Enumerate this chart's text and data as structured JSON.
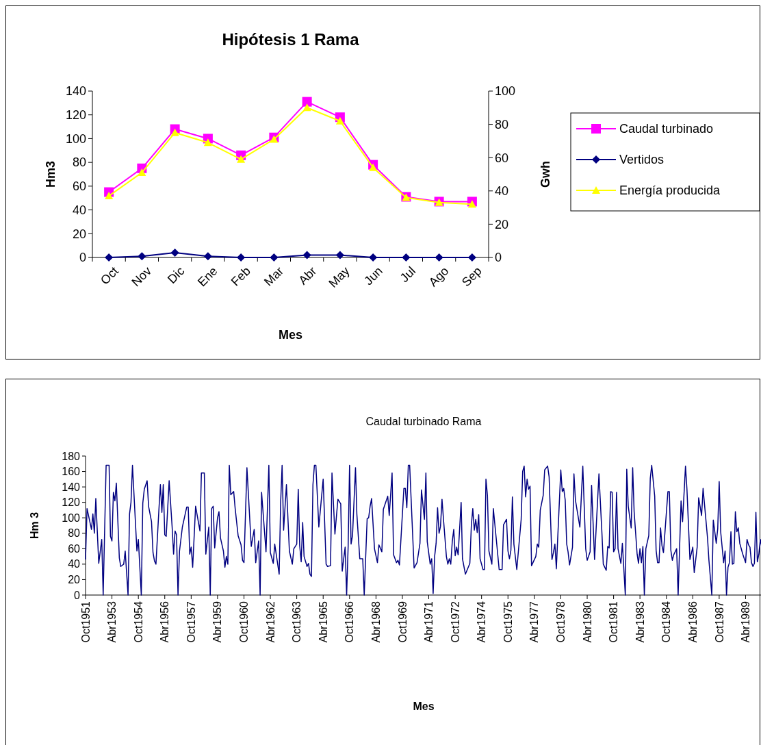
{
  "chart_data": [
    {
      "type": "line",
      "title": "Hipótesis 1 Rama",
      "xlabel": "Mes",
      "ylabel": "Hm3",
      "y2label": "Gwh",
      "categories": [
        "Oct",
        "Nov",
        "Dic",
        "Ene",
        "Feb",
        "Mar",
        "Abr",
        "May",
        "Jun",
        "Jul",
        "Ago",
        "Sep"
      ],
      "series": [
        {
          "name": "Caudal turbinado",
          "color": "#ff00ff",
          "marker": "square",
          "values": [
            55,
            75,
            108,
            100,
            86,
            101,
            131,
            118,
            78,
            51,
            47,
            47
          ]
        },
        {
          "name": "Vertidos",
          "color": "#000080",
          "marker": "diamond",
          "values": [
            0,
            1,
            4,
            1,
            0,
            0,
            2,
            2,
            0,
            0,
            0,
            0
          ]
        },
        {
          "name": "Energía producida",
          "color": "#ffff00",
          "marker": "triangle",
          "axis": "y2",
          "values": [
            37,
            51,
            75,
            69,
            59,
            71,
            90,
            82,
            54,
            36,
            33,
            32
          ]
        }
      ],
      "ylim": [
        0,
        140
      ],
      "yticks": [
        0,
        20,
        40,
        60,
        80,
        100,
        120,
        140
      ],
      "y2lim": [
        0,
        100
      ],
      "y2ticks": [
        0,
        20,
        40,
        60,
        80,
        100
      ],
      "grid": false,
      "legend": "right",
      "line_style": "solid"
    },
    {
      "type": "line",
      "title": "Caudal turbinado Rama",
      "xlabel": "Mes",
      "ylabel": "Hm 3",
      "marker": "none",
      "grid": false,
      "legend": false,
      "line_style": "solid",
      "xlim": [
        "1951-10",
        "1990-03"
      ],
      "ylim": [
        0,
        180
      ],
      "yticks": [
        0,
        20,
        40,
        60,
        80,
        100,
        120,
        140,
        160,
        180
      ],
      "xticks": [
        {
          "value": "1951-10",
          "label": "Oct1951"
        },
        {
          "value": "1953-04",
          "label": "Abr1953"
        },
        {
          "value": "1954-10",
          "label": "Oct1954"
        },
        {
          "value": "1956-04",
          "label": "Abr1956"
        },
        {
          "value": "1957-10",
          "label": "Oct1957"
        },
        {
          "value": "1959-04",
          "label": "Abr1959"
        },
        {
          "value": "1960-10",
          "label": "Oct1960"
        },
        {
          "value": "1962-04",
          "label": "Abr1962"
        },
        {
          "value": "1963-10",
          "label": "Oct1963"
        },
        {
          "value": "1965-04",
          "label": "Abr1965"
        },
        {
          "value": "1966-10",
          "label": "Oct1966"
        },
        {
          "value": "1968-04",
          "label": "Abr1968"
        },
        {
          "value": "1969-10",
          "label": "Oct1969"
        },
        {
          "value": "1971-04",
          "label": "Abr1971"
        },
        {
          "value": "1972-10",
          "label": "Oct1972"
        },
        {
          "value": "1974-04",
          "label": "Abr1974"
        },
        {
          "value": "1975-10",
          "label": "Oct1975"
        },
        {
          "value": "1977-04",
          "label": "Abr1977"
        },
        {
          "value": "1978-10",
          "label": "Oct1978"
        },
        {
          "value": "1980-04",
          "label": "Abr1980"
        },
        {
          "value": "1981-10",
          "label": "Oct1981"
        },
        {
          "value": "1983-04",
          "label": "Abr1983"
        },
        {
          "value": "1984-10",
          "label": "Oct1984"
        },
        {
          "value": "1986-04",
          "label": "Abr1986"
        },
        {
          "value": "1987-10",
          "label": "Oct1987"
        },
        {
          "value": "1989-04",
          "label": "Abr1989"
        }
      ],
      "series": [
        {
          "color": "#000080",
          "x": [
            "1951-10",
            "1951-11",
            "1952-02",
            "1952-03",
            "1952-04",
            "1952-05",
            "1952-07",
            "1952-09",
            "1952-10",
            "1952-12",
            "1953-02",
            "1953-03",
            "1953-04",
            "1953-05",
            "1953-06",
            "1953-07",
            "1953-09",
            "1953-10",
            "1953-12",
            "1954-01",
            "1954-03",
            "1954-04",
            "1954-05",
            "1954-06",
            "1954-09",
            "1954-10",
            "1954-12",
            "1955-01",
            "1955-02",
            "1955-04",
            "1955-05",
            "1955-07",
            "1955-08",
            "1955-09",
            "1955-10",
            "1955-12",
            "1956-01",
            "1956-02",
            "1956-03",
            "1956-04",
            "1956-05",
            "1956-07",
            "1956-09",
            "1956-10",
            "1956-11",
            "1956-12",
            "1957-01",
            "1957-02",
            "1957-04",
            "1957-07",
            "1957-08",
            "1957-09",
            "1957-10",
            "1957-11",
            "1958-01",
            "1958-04",
            "1958-05",
            "1958-07",
            "1958-08",
            "1958-10",
            "1958-11",
            "1958-12",
            "1959-01",
            "1959-02",
            "1959-04",
            "1959-05",
            "1959-06",
            "1959-08",
            "1959-09",
            "1959-10",
            "1959-11",
            "1959-12",
            "1960-01",
            "1960-03",
            "1960-04",
            "1960-06",
            "1960-08",
            "1960-09",
            "1960-10",
            "1960-12",
            "1961-03",
            "1961-05",
            "1961-06",
            "1961-08",
            "1961-09",
            "1961-10",
            "1962-01",
            "1962-03",
            "1962-04",
            "1962-06",
            "1962-07",
            "1962-10",
            "1962-11",
            "1962-12",
            "1963-01",
            "1963-03",
            "1963-05",
            "1963-07",
            "1963-08",
            "1963-10",
            "1963-11",
            "1963-12",
            "1964-01",
            "1964-02",
            "1964-03",
            "1964-05",
            "1964-06",
            "1964-07",
            "1964-08",
            "1964-09",
            "1964-10",
            "1964-11",
            "1965-01",
            "1965-04",
            "1965-06",
            "1965-07",
            "1965-09",
            "1965-10",
            "1965-12",
            "1966-02",
            "1966-04",
            "1966-05",
            "1966-07",
            "1966-08",
            "1966-09",
            "1966-10",
            "1966-11",
            "1966-12",
            "1967-02",
            "1967-03",
            "1967-05",
            "1967-07",
            "1967-08",
            "1967-10",
            "1967-11",
            "1967-12",
            "1968-01",
            "1968-03",
            "1968-05",
            "1968-06",
            "1968-08",
            "1968-09",
            "1968-12",
            "1969-01",
            "1969-03",
            "1969-04",
            "1969-06",
            "1969-07",
            "1969-08",
            "1969-11",
            "1969-12",
            "1970-01",
            "1970-02",
            "1970-03",
            "1970-06",
            "1970-08",
            "1970-10",
            "1970-11",
            "1971-01",
            "1971-02",
            "1971-03",
            "1971-05",
            "1971-06",
            "1971-07",
            "1971-08",
            "1971-09",
            "1971-10",
            "1971-11",
            "1971-12",
            "1972-01",
            "1972-02",
            "1972-04",
            "1972-05",
            "1972-06",
            "1972-07",
            "1972-08",
            "1972-09",
            "1972-10",
            "1972-11",
            "1972-12",
            "1973-02",
            "1973-03",
            "1973-05",
            "1973-08",
            "1973-09",
            "1973-10",
            "1973-11",
            "1973-12",
            "1974-01",
            "1974-02",
            "1974-03",
            "1974-05",
            "1974-06",
            "1974-07",
            "1974-08",
            "1974-09",
            "1974-11",
            "1974-12",
            "1975-02",
            "1975-04",
            "1975-06",
            "1975-07",
            "1975-09",
            "1975-10",
            "1975-11",
            "1975-12",
            "1976-01",
            "1976-02",
            "1976-04",
            "1976-07",
            "1976-08",
            "1976-09",
            "1976-10",
            "1976-11",
            "1976-12",
            "1977-01",
            "1977-02",
            "1977-05",
            "1977-06",
            "1977-07",
            "1977-08",
            "1977-10",
            "1977-11",
            "1978-01",
            "1978-02",
            "1978-04",
            "1978-05",
            "1978-06",
            "1978-07",
            "1978-10",
            "1978-11",
            "1978-12",
            "1979-01",
            "1979-02",
            "1979-03",
            "1979-04",
            "1979-06",
            "1979-07",
            "1979-08",
            "1979-11",
            "1980-01",
            "1980-03",
            "1980-04",
            "1980-06",
            "1980-07",
            "1980-09",
            "1980-12",
            "1981-02",
            "1981-03",
            "1981-05",
            "1981-06",
            "1981-07",
            "1981-08",
            "1981-09",
            "1981-10",
            "1981-11",
            "1981-12",
            "1982-01",
            "1982-03",
            "1982-04",
            "1982-06",
            "1982-07",
            "1982-08",
            "1982-10",
            "1982-11",
            "1982-12",
            "1983-02",
            "1983-03",
            "1983-04",
            "1983-05",
            "1983-06",
            "1983-07",
            "1983-08",
            "1983-10",
            "1983-11",
            "1983-12",
            "1984-02",
            "1984-03",
            "1984-04",
            "1984-05",
            "1984-06",
            "1984-07",
            "1984-08",
            "1984-11",
            "1984-12",
            "1985-01",
            "1985-02",
            "1985-03",
            "1985-05",
            "1985-06",
            "1985-08",
            "1985-09",
            "1985-11",
            "1985-12",
            "1986-02",
            "1986-04",
            "1986-05",
            "1986-07",
            "1986-08",
            "1986-10",
            "1986-11",
            "1987-02",
            "1987-03",
            "1987-05",
            "1987-06",
            "1987-08",
            "1987-09",
            "1987-10",
            "1987-11",
            "1988-01",
            "1988-02",
            "1988-03",
            "1988-04",
            "1988-05",
            "1988-06",
            "1988-07",
            "1988-08",
            "1988-09",
            "1988-10",
            "1988-11",
            "1988-12",
            "1989-02",
            "1989-04",
            "1989-05",
            "1989-06",
            "1989-07",
            "1989-08",
            "1989-09",
            "1989-10",
            "1989-11",
            "1989-12",
            "1990-01",
            "1990-02",
            "1990-03"
          ],
          "values": [
            46,
            112,
            85,
            105,
            80,
            125,
            41,
            72,
            0,
            168,
            168,
            76,
            70,
            133,
            122,
            145,
            48,
            37,
            40,
            57,
            0,
            105,
            120,
            168,
            57,
            72,
            0,
            119,
            137,
            148,
            115,
            95,
            55,
            44,
            40,
            110,
            143,
            107,
            143,
            78,
            76,
            148,
            88,
            53,
            83,
            78,
            0,
            57,
            88,
            114,
            114,
            53,
            62,
            36,
            115,
            83,
            158,
            158,
            53,
            88,
            0,
            112,
            115,
            61,
            100,
            108,
            74,
            57,
            36,
            50,
            40,
            168,
            130,
            134,
            112,
            77,
            65,
            45,
            42,
            165,
            63,
            85,
            42,
            70,
            0,
            133,
            56,
            168,
            55,
            41,
            66,
            27,
            120,
            168,
            84,
            143,
            57,
            40,
            60,
            66,
            137,
            64,
            43,
            94,
            50,
            37,
            41,
            27,
            24,
            143,
            168,
            168,
            88,
            150,
            40,
            37,
            38,
            158,
            79,
            124,
            118,
            31,
            62,
            0,
            62,
            168,
            66,
            77,
            165,
            105,
            47,
            47,
            0,
            99,
            100,
            115,
            125,
            60,
            42,
            65,
            56,
            111,
            128,
            103,
            158,
            52,
            42,
            45,
            39,
            138,
            138,
            113,
            168,
            168,
            35,
            42,
            67,
            136,
            98,
            158,
            69,
            40,
            47,
            2,
            50,
            67,
            113,
            80,
            89,
            124,
            98,
            50,
            40,
            47,
            40,
            69,
            85,
            51,
            62,
            52,
            120,
            47,
            27,
            41,
            90,
            112,
            84,
            98,
            81,
            104,
            47,
            33,
            33,
            150,
            129,
            57,
            40,
            112,
            72,
            33,
            33,
            91,
            98,
            57,
            47,
            58,
            127,
            66,
            33,
            98,
            160,
            167,
            127,
            150,
            137,
            141,
            38,
            50,
            66,
            62,
            110,
            129,
            162,
            167,
            153,
            46,
            55,
            66,
            34,
            162,
            134,
            138,
            123,
            66,
            56,
            39,
            62,
            157,
            123,
            88,
            167,
            60,
            45,
            56,
            142,
            46,
            157,
            80,
            40,
            32,
            63,
            61,
            134,
            133,
            56,
            60,
            133,
            60,
            41,
            67,
            0,
            163,
            115,
            87,
            165,
            108,
            53,
            41,
            60,
            42,
            63,
            0,
            60,
            77,
            151,
            168,
            128,
            58,
            42,
            42,
            87,
            64,
            55,
            134,
            134,
            58,
            45,
            52,
            60,
            0,
            122,
            95,
            167,
            137,
            46,
            62,
            29,
            62,
            126,
            103,
            138,
            74,
            46,
            0,
            97,
            67,
            86,
            147,
            82,
            42,
            57,
            0,
            36,
            42,
            82,
            40,
            41,
            108,
            82,
            87,
            67,
            53,
            42,
            72,
            65,
            62,
            42,
            37,
            41,
            107,
            43,
            53,
            72,
            62
          ]
        }
      ]
    }
  ]
}
